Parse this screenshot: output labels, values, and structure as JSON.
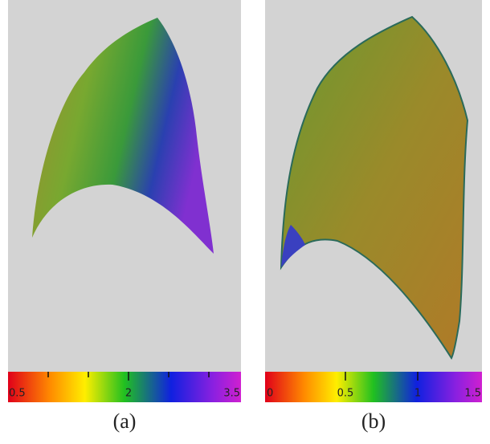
{
  "panels": [
    {
      "caption": "(a)",
      "colorbar_labels": [
        "0.5",
        "2",
        "3.5"
      ]
    },
    {
      "caption": "(b)",
      "colorbar_labels": [
        "0",
        "0.5",
        "1",
        "1.5"
      ]
    }
  ]
}
